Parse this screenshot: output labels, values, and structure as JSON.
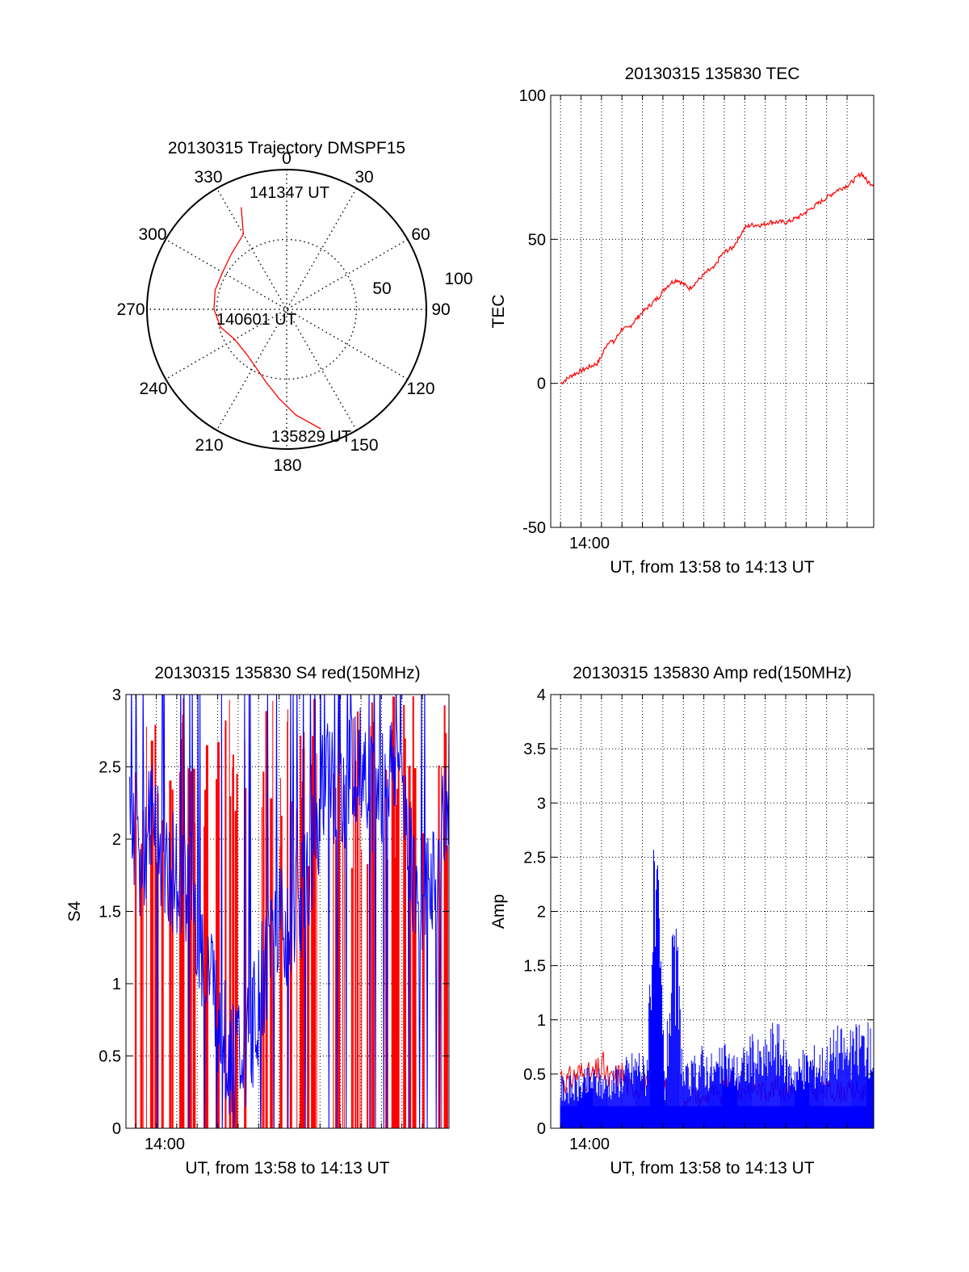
{
  "colors": {
    "red_series": "#ff0000",
    "blue_series": "#0000ff",
    "axis": "#000000",
    "background": "#ffffff"
  },
  "chart_data": [
    {
      "id": "trajectory",
      "type": "polar",
      "title": "20130315 Trajectory DMSPF15",
      "angle_labels": [
        "0",
        "30",
        "60",
        "90",
        "120",
        "150",
        "180",
        "210",
        "240",
        "270",
        "300",
        "330"
      ],
      "radial_labels": [
        "50",
        "100"
      ],
      "radial_range": [
        0,
        100
      ],
      "point_labels": {
        "end": "141347 UT",
        "mid": "140601 UT",
        "start": "135829 UT"
      },
      "track": {
        "az": [
          164,
          175,
          185,
          196,
          208,
          222,
          240,
          255,
          270,
          285,
          300,
          315,
          330,
          336
        ],
        "r": [
          89,
          76,
          64,
          54,
          47,
          43,
          43,
          49,
          52,
          53,
          53,
          56,
          62,
          80
        ]
      }
    },
    {
      "id": "tec",
      "type": "line",
      "title": "20130315 135830 TEC",
      "xlabel": "UT, from 13:58 to 14:13 UT",
      "ylabel": "TEC",
      "xtick_label": "14:00",
      "xlim": [
        13.967,
        14.23
      ],
      "ylim": [
        -50,
        100
      ],
      "yticks": [
        "-50",
        "0",
        "50",
        "100"
      ],
      "series": [
        {
          "name": "TEC",
          "color": "red",
          "x": [
            13.975,
            13.985,
            13.99,
            13.995,
            14.0,
            14.005,
            14.008,
            14.012,
            14.015,
            14.018,
            14.025,
            14.03,
            14.04,
            14.05,
            14.055,
            14.06,
            14.065,
            14.07,
            14.08,
            14.09,
            14.095,
            14.1,
            14.105,
            14.11,
            14.115,
            14.125,
            14.13,
            14.135,
            14.14,
            14.145,
            14.16,
            14.17,
            14.18,
            14.19,
            14.2,
            14.21,
            14.215,
            14.22,
            14.225,
            14.23
          ],
          "y": [
            0,
            3,
            4,
            5,
            6,
            7,
            9,
            13,
            15,
            14,
            19,
            19,
            24,
            28,
            30,
            33,
            35,
            36,
            33,
            37,
            39,
            40,
            44,
            46,
            47,
            54,
            55,
            55,
            55,
            56,
            56,
            58,
            61,
            64,
            67,
            69,
            71,
            73,
            70,
            69
          ]
        }
      ]
    },
    {
      "id": "s4",
      "type": "line",
      "title": "20130315 135830 S4 red(150MHz)",
      "xlabel": "UT, from 13:58 to 14:13 UT",
      "ylabel": "S4",
      "xtick_label": "14:00",
      "xlim": [
        13.967,
        14.23
      ],
      "ylim": [
        0,
        3
      ],
      "yticks": [
        "0",
        "0.5",
        "1",
        "1.5",
        "2",
        "2.5",
        "3"
      ],
      "series": [
        {
          "name": "S4 red",
          "color": "red",
          "x": [
            13.97,
            14.23
          ],
          "y": [
            0.0,
            3.0
          ]
        },
        {
          "name": "S4 blue",
          "color": "blue",
          "x": [
            13.97,
            13.98,
            13.99,
            14.0,
            14.01,
            14.02,
            14.03,
            14.04,
            14.05,
            14.06,
            14.07,
            14.08,
            14.09,
            14.1,
            14.11,
            14.12,
            14.13,
            14.14,
            14.15,
            14.16,
            14.17,
            14.18,
            14.19,
            14.2,
            14.21,
            14.22,
            14.23
          ],
          "y": [
            2.2,
            1.8,
            2.2,
            1.8,
            1.8,
            1.6,
            1.2,
            0.9,
            0.5,
            0.5,
            0.7,
            1.1,
            1.5,
            1.4,
            1.6,
            2.0,
            2.5,
            2.2,
            2.5,
            2.6,
            2.2,
            2.4,
            2.5,
            1.8,
            1.5,
            1.8,
            2.4
          ]
        }
      ]
    },
    {
      "id": "amp",
      "type": "line",
      "title": "20130315 135830 Amp red(150MHz)",
      "xlabel": "UT, from 13:58 to 14:13 UT",
      "ylabel": "Amp",
      "xtick_label": "14:00",
      "xlim": [
        13.967,
        14.23
      ],
      "ylim": [
        0,
        4
      ],
      "yticks": [
        "0",
        "0.5",
        "1",
        "1.5",
        "2",
        "2.5",
        "3",
        "3.5",
        "4"
      ],
      "series": [
        {
          "name": "Amp blue",
          "color": "blue",
          "x": [
            13.975,
            13.99,
            14.0,
            14.01,
            14.02,
            14.03,
            14.04,
            14.045,
            14.05,
            14.055,
            14.06,
            14.065,
            14.07,
            14.075,
            14.08,
            14.09,
            14.1,
            14.11,
            14.12,
            14.13,
            14.14,
            14.15,
            14.16,
            14.17,
            14.18,
            14.19,
            14.2,
            14.21,
            14.22,
            14.23
          ],
          "y": [
            0.5,
            0.5,
            0.6,
            0.55,
            0.6,
            0.7,
            0.8,
            0.6,
            2.65,
            2.4,
            0.5,
            1.75,
            1.9,
            0.6,
            0.6,
            0.8,
            0.7,
            0.8,
            0.7,
            0.9,
            0.8,
            1.1,
            0.7,
            0.7,
            0.8,
            0.8,
            1.0,
            0.9,
            1.05,
            0.95
          ]
        },
        {
          "name": "Amp red",
          "color": "red",
          "x": [
            13.975,
            13.98,
            13.99,
            14.0,
            14.01,
            14.015,
            14.02,
            14.025,
            14.03,
            14.04,
            14.05,
            14.06,
            14.062,
            14.065,
            14.07,
            14.08,
            14.09,
            14.1,
            14.105,
            14.11,
            14.12,
            14.13,
            14.14,
            14.15,
            14.16,
            14.17,
            14.18,
            14.19,
            14.2,
            14.21,
            14.22,
            14.23
          ],
          "y": [
            0.6,
            0.5,
            0.6,
            0.55,
            0.65,
            0.5,
            0.55,
            0.6,
            0.45,
            0.45,
            0.45,
            0.5,
            0.0,
            0.1,
            0.0,
            0.4,
            0.3,
            0.4,
            0.3,
            0.5,
            0.4,
            0.45,
            0.4,
            0.45,
            0.4,
            0.4,
            0.4,
            0.4,
            0.4,
            0.4,
            0.4,
            0.4
          ]
        }
      ]
    }
  ]
}
